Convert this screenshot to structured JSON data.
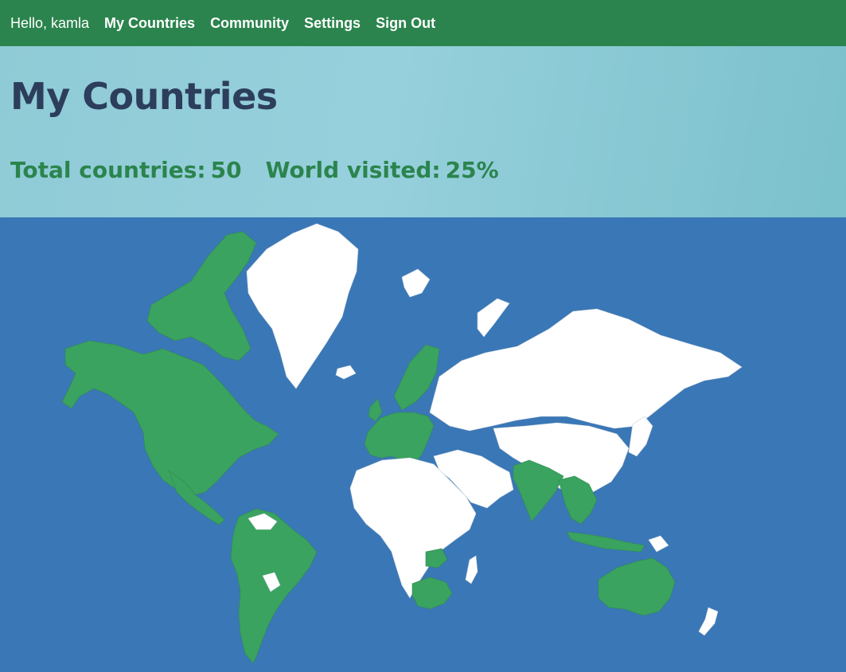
{
  "nav": {
    "greeting": "Hello, kamla",
    "items": [
      {
        "label": "My Countries"
      },
      {
        "label": "Community"
      },
      {
        "label": "Settings"
      },
      {
        "label": "Sign Out"
      }
    ]
  },
  "page": {
    "title": "My Countries",
    "total_label": "Total countries:",
    "total_value": "50",
    "visited_label": "World visited:",
    "visited_value": "25%"
  },
  "colors": {
    "nav_bg": "#2b844d",
    "ocean": "#3a77b6",
    "visited": "#3aa35f",
    "unvisited": "#ffffff",
    "title": "#2c3e5c"
  },
  "map": {
    "visited_regions": [
      "north-america",
      "central-america",
      "south-america",
      "western-europe",
      "scandinavia",
      "india",
      "southeast-asia",
      "indonesia",
      "australia",
      "southern-africa",
      "zambia"
    ],
    "unvisited_regions": [
      "greenland",
      "russia",
      "china",
      "middle-east",
      "north-africa",
      "central-africa",
      "madagascar",
      "japan",
      "new-zealand",
      "iceland",
      "svalbard"
    ]
  }
}
